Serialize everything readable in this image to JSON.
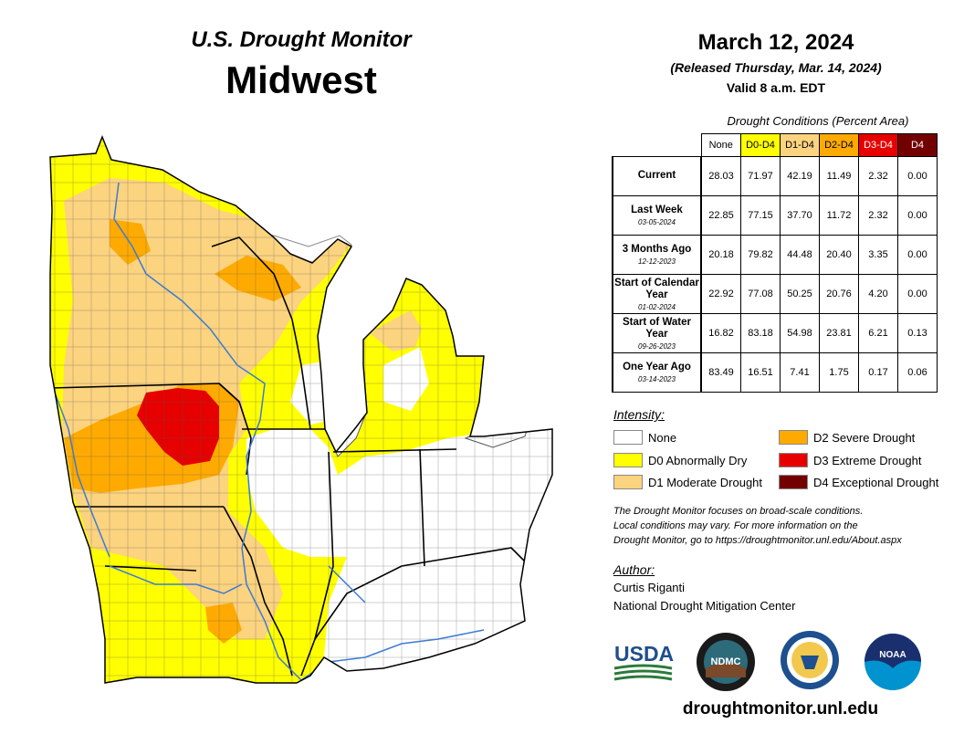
{
  "header": {
    "subtitle": "U.S. Drought Monitor",
    "title": "Midwest"
  },
  "info": {
    "date": "March 12, 2024",
    "released": "(Released Thursday, Mar. 14, 2024)",
    "valid": "Valid 8 a.m. EDT"
  },
  "table": {
    "caption": "Drought Conditions (Percent Area)",
    "columns": [
      "None",
      "D0-D4",
      "D1-D4",
      "D2-D4",
      "D3-D4",
      "D4"
    ],
    "column_colors": [
      "#ffffff",
      "#ffff00",
      "#fcd37f",
      "#ffaa00",
      "#e60000",
      "#730000"
    ],
    "rows": [
      {
        "label": "Current",
        "date": "",
        "values": [
          "28.03",
          "71.97",
          "42.19",
          "11.49",
          "2.32",
          "0.00"
        ]
      },
      {
        "label": "Last Week",
        "date": "03-05-2024",
        "values": [
          "22.85",
          "77.15",
          "37.70",
          "11.72",
          "2.32",
          "0.00"
        ]
      },
      {
        "label": "3 Months Ago",
        "date": "12-12-2023",
        "values": [
          "20.18",
          "79.82",
          "44.48",
          "20.40",
          "3.35",
          "0.00"
        ]
      },
      {
        "label": "Start of Calendar Year",
        "date": "01-02-2024",
        "values": [
          "22.92",
          "77.08",
          "50.25",
          "20.76",
          "4.20",
          "0.00"
        ]
      },
      {
        "label": "Start of Water Year",
        "date": "09-26-2023",
        "values": [
          "16.82",
          "83.18",
          "54.98",
          "23.81",
          "6.21",
          "0.13"
        ]
      },
      {
        "label": "One Year Ago",
        "date": "03-14-2023",
        "values": [
          "83.49",
          "16.51",
          "7.41",
          "1.75",
          "0.17",
          "0.06"
        ]
      }
    ]
  },
  "legend": {
    "title": "Intensity:",
    "items": [
      {
        "label": "None",
        "color": "#ffffff"
      },
      {
        "label": "D0 Abnormally Dry",
        "color": "#ffff00"
      },
      {
        "label": "D1 Moderate Drought",
        "color": "#fcd37f"
      },
      {
        "label": "D2 Severe Drought",
        "color": "#ffaa00"
      },
      {
        "label": "D3 Extreme Drought",
        "color": "#e60000"
      },
      {
        "label": "D4 Exceptional Drought",
        "color": "#730000"
      }
    ]
  },
  "note": {
    "line1": "The Drought Monitor focuses on broad-scale conditions.",
    "line2": "Local conditions may vary. For more information on the",
    "line3": "Drought Monitor, go to https://droughtmonitor.unl.edu/About.aspx"
  },
  "author": {
    "heading": "Author:",
    "name": "Curtis Riganti",
    "org": "National Drought Mitigation Center"
  },
  "logos": {
    "usda": "USDA",
    "ndmc": "NDMC",
    "noaa": "NOAA"
  },
  "footer_url": "droughtmonitor.unl.edu"
}
